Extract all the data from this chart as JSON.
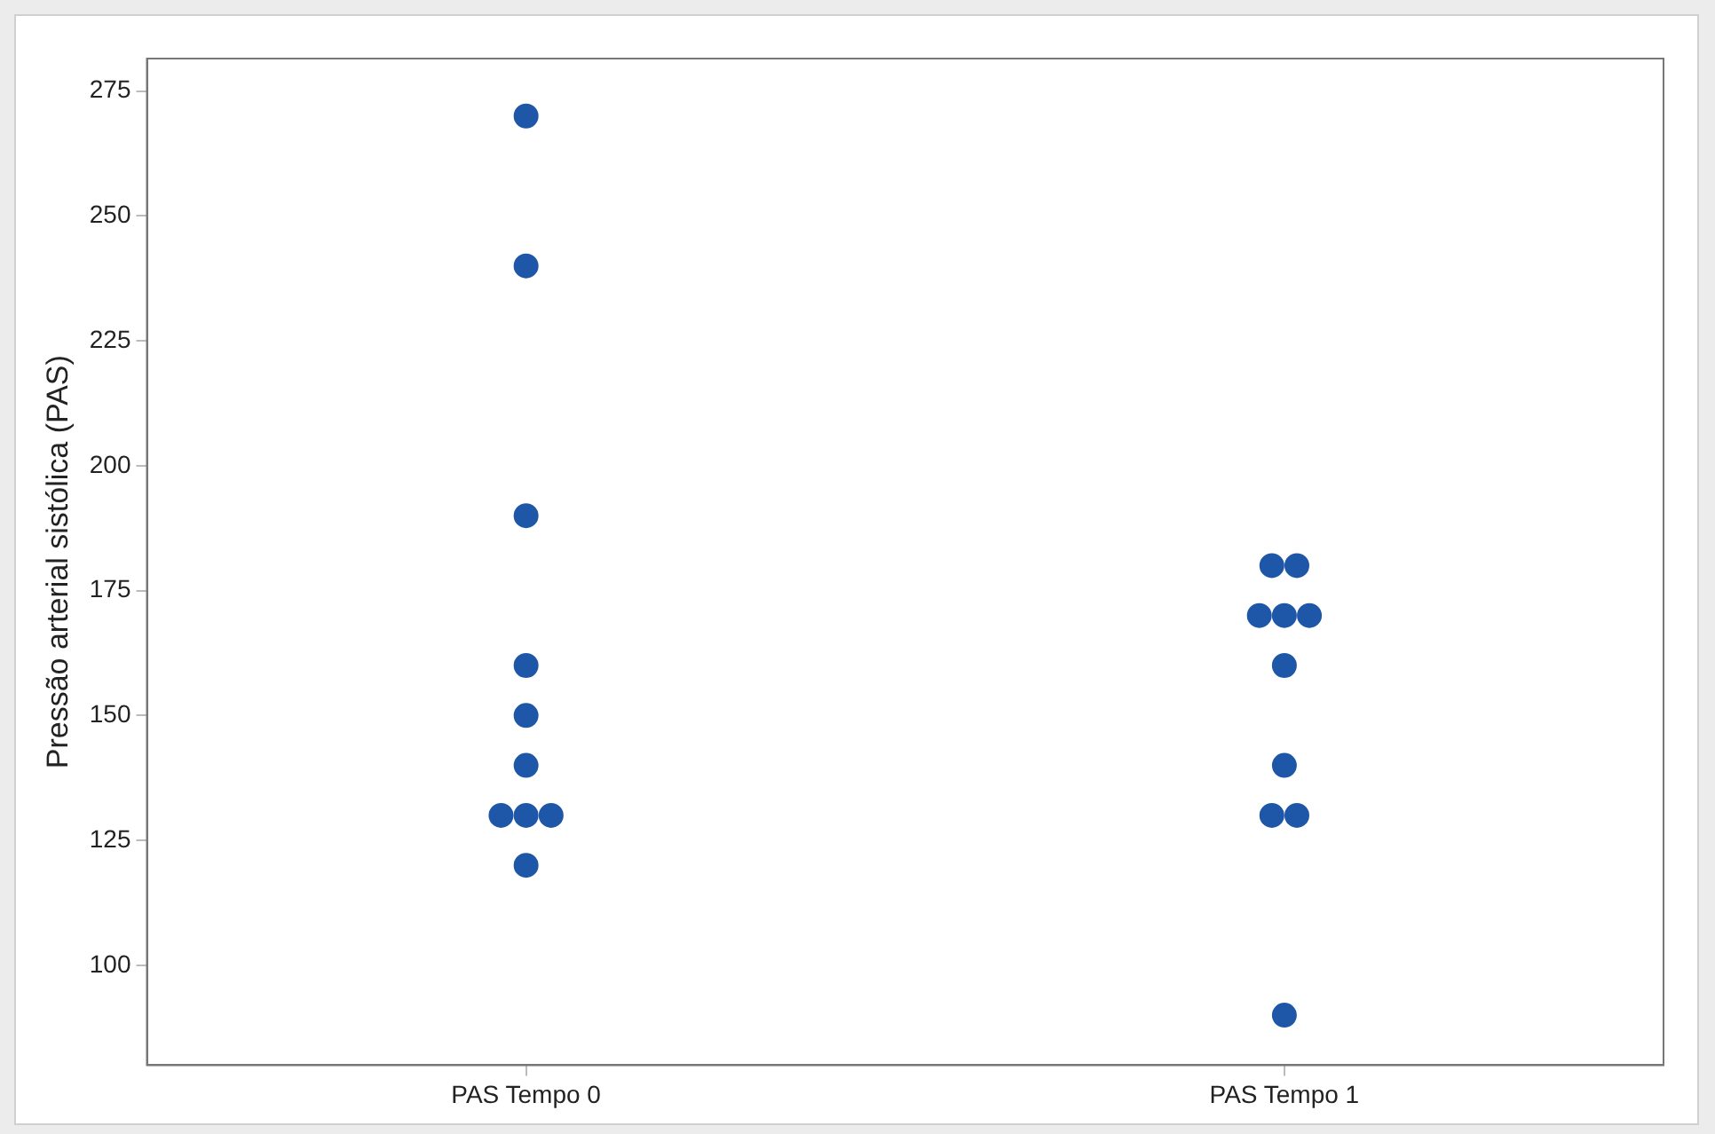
{
  "chart_data": {
    "type": "scatter",
    "ylabel": "Pressão arterial sistólica (PAS)",
    "categories": [
      "PAS Tempo 0",
      "PAS Tempo 1"
    ],
    "series": [
      {
        "color": "#1f57a8",
        "x": [
          "PAS Tempo 0",
          "PAS Tempo 0",
          "PAS Tempo 0",
          "PAS Tempo 0",
          "PAS Tempo 0",
          "PAS Tempo 0",
          "PAS Tempo 0",
          "PAS Tempo 0",
          "PAS Tempo 0",
          "PAS Tempo 0"
        ],
        "values": [
          270,
          240,
          190,
          160,
          150,
          140,
          130,
          130,
          130,
          120
        ]
      },
      {
        "color": "#1f57a8",
        "x": [
          "PAS Tempo 1",
          "PAS Tempo 1",
          "PAS Tempo 1",
          "PAS Tempo 1",
          "PAS Tempo 1",
          "PAS Tempo 1",
          "PAS Tempo 1",
          "PAS Tempo 1",
          "PAS Tempo 1",
          "PAS Tempo 1"
        ],
        "values": [
          180,
          180,
          170,
          170,
          170,
          160,
          140,
          130,
          130,
          90
        ]
      }
    ],
    "ylim": [
      80,
      281.5
    ],
    "yticks": [
      100,
      125,
      150,
      175,
      200,
      225,
      250,
      275
    ],
    "grid": false,
    "legend": false,
    "marker": "circle"
  }
}
